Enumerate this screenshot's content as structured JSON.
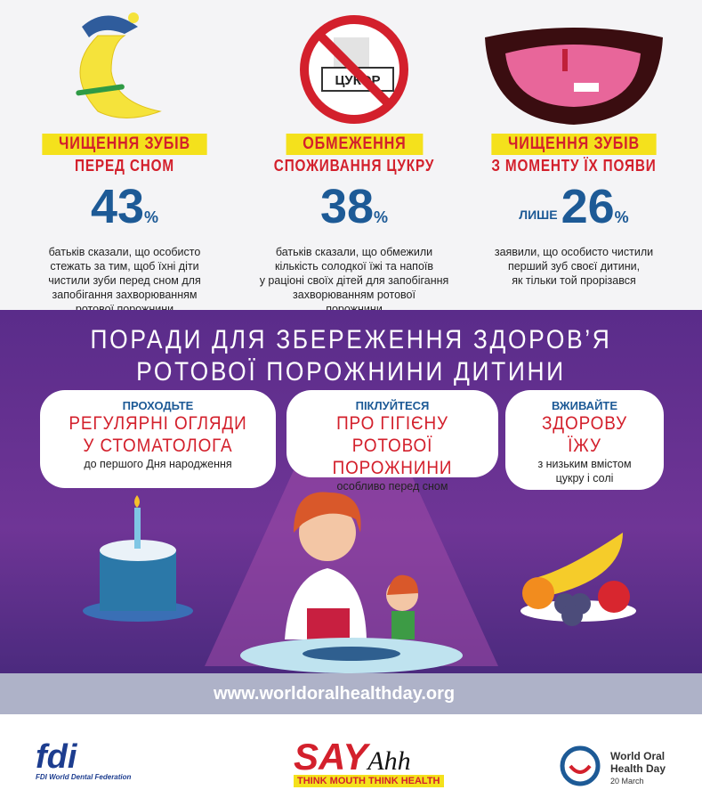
{
  "stats": [
    {
      "title_line1": "ЧИЩЕННЯ ЗУБІВ",
      "title_line2": "ПЕРЕД СНОМ",
      "value": "43",
      "unit": "%",
      "description": [
        "батьків сказали, що особисто",
        "стежать за тим, щоб їхні діти",
        "чистили зуби перед сном для",
        "запобігання захворюванням",
        "ротової порожнини"
      ]
    },
    {
      "title_line1": "ОБМЕЖЕННЯ",
      "title_line2": "СПОЖИВАННЯ ЦУКРУ",
      "icon_text": "ЦУКОР",
      "value": "38",
      "unit": "%",
      "description": [
        "батьків сказали, що обмежили",
        "кількість солодкої їжі та напоїв",
        "у раціоні своїх дітей для запобігання",
        "захворюванням ротової",
        "порожнини"
      ]
    },
    {
      "title_line1": "ЧИЩЕННЯ ЗУБІВ",
      "title_line2": "З МОМЕНТУ ЇХ ПОЯВИ",
      "prefix": "ЛИШЕ",
      "value": "26",
      "unit": "%",
      "description": [
        "заявили, що особисто чистили",
        "перший зуб своєї дитини,",
        "як тільки той прорізався"
      ]
    }
  ],
  "tips": {
    "heading": [
      "ПОРАДИ ДЛЯ ЗБЕРЕЖЕННЯ ЗДОРОВ’Я",
      "РОТОВОЇ ПОРОЖНИНИ ДИТИНИ"
    ],
    "items": [
      {
        "label": "ПРОХОДЬТЕ",
        "main": [
          "РЕГУЛЯРНІ ОГЛЯДИ",
          "У СТОМАТОЛОГА"
        ],
        "sub": [
          "до першого Дня народження"
        ]
      },
      {
        "label": "ПІКЛУЙТЕСЯ",
        "main": [
          "ПРО ГІГІЄНУ РОТОВОЇ",
          "ПОРОЖНИНИ"
        ],
        "sub": [
          "особливо перед сном"
        ]
      },
      {
        "label": "ВЖИВАЙТЕ",
        "main": [
          "ЗДОРОВУ",
          "ЇЖУ"
        ],
        "sub": [
          "з низьким вмістом",
          "цукру і солі"
        ]
      }
    ]
  },
  "url": "www.worldoralhealthday.org",
  "footer": {
    "fdi": {
      "logo": "fdi",
      "name": "FDI World Dental Federation"
    },
    "campaign": {
      "say": "SAY",
      "ahh": "Ahh",
      "slogan": "THINK MOUTH THINK HEALTH"
    },
    "day": {
      "line1": "World Oral",
      "line2": "Health Day",
      "date": "20 March"
    }
  }
}
